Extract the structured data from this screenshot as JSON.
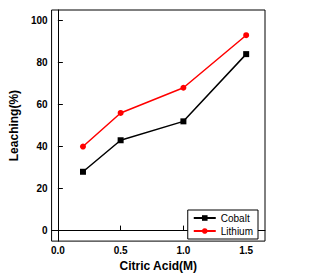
{
  "chart_data": {
    "type": "line",
    "x_label": "Citric Acid(M)",
    "y_label": "Leaching(%)",
    "series": [
      {
        "name": "Cobalt",
        "color": "#000000",
        "marker": "square",
        "x": [
          0.2,
          0.5,
          1.0,
          1.5
        ],
        "values": [
          28,
          43,
          52,
          84
        ]
      },
      {
        "name": "Lithium",
        "color": "#ff0000",
        "marker": "circle",
        "x": [
          0.2,
          0.5,
          1.0,
          1.5
        ],
        "values": [
          40,
          56,
          68,
          93
        ]
      }
    ],
    "xlim": [
      -0.05,
      1.65
    ],
    "xticks": [
      {
        "value": 0,
        "label": "0.0"
      },
      0.5,
      {
        "value": 1,
        "label": "1.0"
      },
      1.5
    ],
    "ylim": [
      -5,
      105
    ],
    "yticks": [
      0,
      20,
      40,
      60,
      80,
      100
    ],
    "grid": false,
    "legend": "lower right"
  }
}
